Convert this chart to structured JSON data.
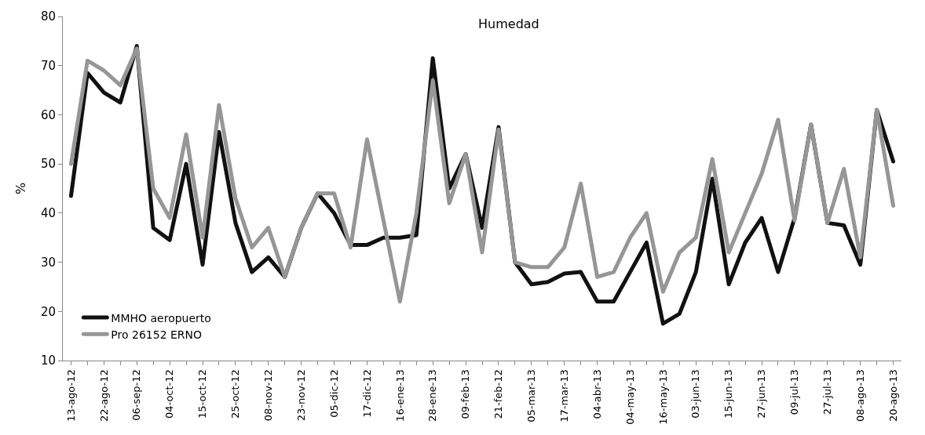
{
  "chart_data": {
    "type": "line",
    "title": "Humedad",
    "ylabel": "%",
    "categories": [
      "13-ago-12",
      null,
      "22-ago-12",
      null,
      "06-sep-12",
      null,
      "04-oct-12",
      null,
      "15-oct-12",
      null,
      "25-oct-12",
      null,
      "08-nov-12",
      null,
      "23-nov-12",
      null,
      "05-dic-12",
      null,
      "17-dic-12",
      null,
      "16-ene-13",
      null,
      "28-ene-13",
      null,
      "09-feb-13",
      null,
      "21-feb-12",
      null,
      "05-mar-13",
      null,
      "17-mar-13",
      null,
      "04-abr-13",
      null,
      "04-may-13",
      null,
      "16-may-13",
      null,
      "03-jun-13",
      null,
      "15-jun-13",
      null,
      "27-jun-13",
      null,
      "09-jul-13",
      null,
      "27-jul-13",
      null,
      "08-ago-13",
      null,
      "20-ago-13"
    ],
    "series": [
      {
        "name": "MMHO aeropuerto",
        "color": "#111111",
        "values": [
          43.5,
          68.5,
          64.5,
          62.5,
          74,
          37,
          34.5,
          50,
          29.5,
          56.5,
          38,
          28,
          31,
          27,
          37,
          44,
          40,
          33.5,
          33.5,
          35,
          35,
          35.5,
          71.5,
          45,
          52,
          37,
          57.5,
          30,
          25.5,
          26,
          27.7,
          28,
          22,
          22,
          28,
          34,
          17.5,
          19.5,
          28,
          47,
          25.5,
          34,
          39,
          28,
          39,
          58,
          38,
          37.5,
          29.5,
          61,
          50.5
        ]
      },
      {
        "name": "Pro 26152 ERNO",
        "color": "#969696",
        "values": [
          50,
          71,
          69,
          66,
          73.5,
          45,
          39,
          56,
          35,
          62,
          43,
          33,
          37,
          27,
          37,
          44,
          44,
          33,
          55,
          38.5,
          22,
          40,
          67,
          42,
          52,
          32,
          57,
          30,
          29,
          29,
          33,
          46,
          27,
          28,
          35,
          40,
          24,
          32,
          35,
          51,
          32,
          40,
          48,
          59,
          38.5,
          58,
          38,
          49,
          31,
          61,
          41.5
        ]
      }
    ],
    "ylim": [
      10,
      80
    ],
    "yticks": [
      10,
      20,
      30,
      40,
      50,
      60,
      70,
      80
    ],
    "legend": "bottom left",
    "marker": "none",
    "line_style": "solid"
  }
}
